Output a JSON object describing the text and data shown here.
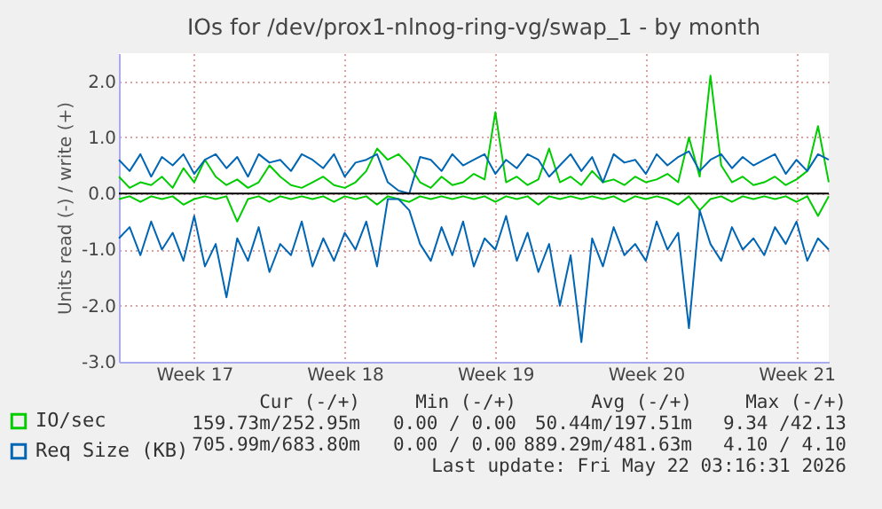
{
  "chart_data": {
    "type": "line",
    "title": "IOs for /dev/prox1-nlnog-ring-vg/swap_1 - by month",
    "ylabel": "Units read (-) / write (+)",
    "categories": [
      null,
      null,
      null,
      null,
      null,
      null,
      null,
      "Week 17",
      null,
      null,
      null,
      null,
      null,
      null,
      null,
      null,
      null,
      null,
      null,
      null,
      null,
      "Week 18",
      null,
      null,
      null,
      null,
      null,
      null,
      null,
      null,
      null,
      null,
      null,
      null,
      null,
      "Week 19",
      null,
      null,
      null,
      null,
      null,
      null,
      null,
      null,
      null,
      null,
      null,
      null,
      null,
      "Week 20",
      null,
      null,
      null,
      null,
      null,
      null,
      null,
      null,
      null,
      null,
      null,
      null,
      null,
      "Week 21",
      null,
      null,
      null
    ],
    "series": [
      {
        "name": "IO/sec",
        "color": "#00cc00",
        "values": [
          0.3,
          0.1,
          0.2,
          0.15,
          0.3,
          0.1,
          0.45,
          0.2,
          0.6,
          0.3,
          0.15,
          0.25,
          0.1,
          0.2,
          0.5,
          0.3,
          0.15,
          0.1,
          0.2,
          0.3,
          0.15,
          0.1,
          0.2,
          0.4,
          0.8,
          0.6,
          0.7,
          0.5,
          0.2,
          0.1,
          0.3,
          0.15,
          0.2,
          0.35,
          0.25,
          1.45,
          0.2,
          0.3,
          0.15,
          0.25,
          0.8,
          0.2,
          0.3,
          0.15,
          0.4,
          0.2,
          0.25,
          0.15,
          0.3,
          0.2,
          0.25,
          0.35,
          0.2,
          1.0,
          0.3,
          2.1,
          0.5,
          0.2,
          0.3,
          0.15,
          0.2,
          0.3,
          0.15,
          0.25,
          0.4,
          1.2,
          0.2
        ]
      },
      {
        "color": "#00cc00",
        "values": [
          -0.1,
          -0.05,
          -0.15,
          -0.05,
          -0.1,
          -0.05,
          -0.2,
          -0.1,
          -0.05,
          -0.1,
          -0.05,
          -0.5,
          -0.1,
          -0.05,
          -0.15,
          -0.05,
          -0.1,
          -0.05,
          -0.1,
          -0.05,
          -0.15,
          -0.05,
          -0.1,
          -0.05,
          -0.2,
          -0.05,
          -0.1,
          -0.15,
          -0.05,
          -0.1,
          -0.05,
          -0.1,
          -0.05,
          -0.1,
          -0.05,
          -0.15,
          -0.05,
          -0.1,
          -0.05,
          -0.2,
          -0.05,
          -0.1,
          -0.05,
          -0.1,
          -0.05,
          -0.1,
          -0.05,
          -0.15,
          -0.05,
          -0.1,
          -0.05,
          -0.1,
          -0.2,
          -0.05,
          -0.3,
          -0.1,
          -0.05,
          -0.15,
          -0.05,
          -0.1,
          -0.05,
          -0.1,
          -0.05,
          -0.15,
          -0.05,
          -0.4,
          -0.05
        ]
      },
      {
        "name": "Req Size (KB)",
        "color": "#0066b3",
        "values": [
          0.6,
          0.4,
          0.7,
          0.3,
          0.65,
          0.5,
          0.7,
          0.35,
          0.6,
          0.7,
          0.45,
          0.65,
          0.3,
          0.7,
          0.55,
          0.6,
          0.4,
          0.7,
          0.6,
          0.45,
          0.7,
          0.3,
          0.55,
          0.6,
          0.7,
          0.2,
          0.05,
          0.0,
          0.65,
          0.6,
          0.4,
          0.7,
          0.5,
          0.6,
          0.7,
          0.35,
          0.6,
          0.45,
          0.7,
          0.6,
          0.3,
          0.5,
          0.7,
          0.4,
          0.65,
          0.2,
          0.7,
          0.55,
          0.6,
          0.35,
          0.7,
          0.5,
          0.65,
          0.75,
          0.4,
          0.6,
          0.7,
          0.45,
          0.65,
          0.5,
          0.6,
          0.7,
          0.35,
          0.6,
          0.4,
          0.7,
          0.6
        ]
      },
      {
        "color": "#0066b3",
        "values": [
          -0.8,
          -0.6,
          -1.1,
          -0.5,
          -1.0,
          -0.7,
          -1.2,
          -0.4,
          -1.3,
          -0.9,
          -1.85,
          -0.8,
          -1.2,
          -0.6,
          -1.4,
          -0.9,
          -1.1,
          -0.5,
          -1.3,
          -0.8,
          -1.2,
          -0.7,
          -1.0,
          -0.5,
          -1.3,
          -0.1,
          -0.1,
          -0.3,
          -0.9,
          -1.2,
          -0.6,
          -1.1,
          -0.5,
          -1.3,
          -0.8,
          -1.0,
          -0.4,
          -1.2,
          -0.7,
          -1.4,
          -0.9,
          -2.0,
          -1.1,
          -2.65,
          -0.8,
          -1.3,
          -0.6,
          -1.1,
          -0.9,
          -1.2,
          -0.5,
          -1.0,
          -0.7,
          -2.4,
          -0.3,
          -0.9,
          -1.2,
          -0.6,
          -1.0,
          -0.8,
          -1.1,
          -0.6,
          -0.9,
          -0.5,
          -1.2,
          -0.8,
          -1.0
        ]
      }
    ],
    "ylim": [
      -3,
      2.5
    ],
    "yticks": [
      {
        "value": -3,
        "label": "-3.0"
      },
      {
        "value": -2,
        "label": "-2.0"
      },
      {
        "value": -1,
        "label": "-1.0"
      },
      {
        "value": 0,
        "label": "0.0"
      },
      {
        "value": 1,
        "label": "1.0"
      },
      {
        "value": 2,
        "label": "2.0"
      }
    ],
    "ref_lines": [
      {
        "axis": "y",
        "value": 0,
        "color": "#000000"
      }
    ],
    "grid": true,
    "legend": "bottom left",
    "marker": "none",
    "line_style": "solid",
    "annotations": [
      "Cur (-/+)",
      "Min (-/+)",
      "Avg (-/+)",
      "Max (-/+)",
      "159.73m/252.95m",
      "0.00 / 0.00",
      "50.44m/197.51m",
      "9.34 /42.13",
      "705.99m/683.80m",
      "0.00 / 0.00",
      "889.29m/481.63m",
      "4.10 / 4.10",
      "Last update: Fri May 22 03:16:31 2026"
    ]
  }
}
